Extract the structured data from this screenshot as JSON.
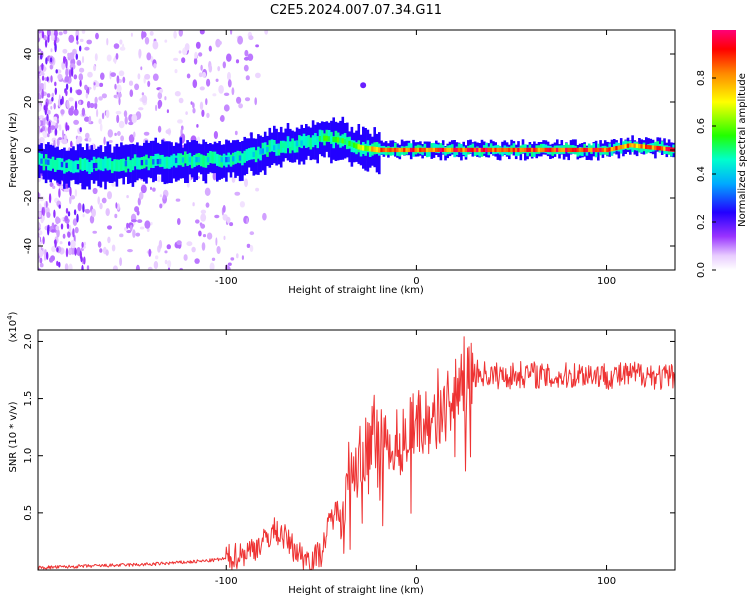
{
  "title": "C2E5.2024.007.07.34.G11",
  "chart_data": [
    {
      "type": "heatmap",
      "xlabel": "Height of straight line (km)",
      "ylabel": "Frequency (Hz)",
      "xlim": [
        -199,
        136
      ],
      "ylim": [
        -50,
        50
      ],
      "xticks": [
        -100,
        0,
        100
      ],
      "yticks": [
        -40,
        -20,
        0,
        20,
        40
      ],
      "colorbar": {
        "label": "Normalized spectral amplitude",
        "range": [
          0,
          1
        ],
        "ticks": [
          "0.0",
          "0.2",
          "0.4",
          "0.6",
          "0.8"
        ]
      },
      "ridge": [
        {
          "x": -195,
          "freq": -5,
          "amp": 0.35
        },
        {
          "x": -180,
          "freq": -7,
          "amp": 0.3
        },
        {
          "x": -160,
          "freq": -6,
          "amp": 0.3
        },
        {
          "x": -140,
          "freq": -5,
          "amp": 0.35
        },
        {
          "x": -120,
          "freq": -4,
          "amp": 0.4
        },
        {
          "x": -100,
          "freq": -4,
          "amp": 0.4
        },
        {
          "x": -90,
          "freq": -3,
          "amp": 0.45
        },
        {
          "x": -80,
          "freq": 0,
          "amp": 0.45
        },
        {
          "x": -70,
          "freq": 2,
          "amp": 0.5
        },
        {
          "x": -60,
          "freq": 3,
          "amp": 0.5
        },
        {
          "x": -50,
          "freq": 5,
          "amp": 0.6
        },
        {
          "x": -40,
          "freq": 4,
          "amp": 0.6
        },
        {
          "x": -30,
          "freq": 1,
          "amp": 0.7
        },
        {
          "x": -20,
          "freq": 0,
          "amp": 0.9
        },
        {
          "x": 0,
          "freq": 0,
          "amp": 1.0
        },
        {
          "x": 50,
          "freq": 0,
          "amp": 1.0
        },
        {
          "x": 100,
          "freq": 0,
          "amp": 1.0
        },
        {
          "x": 112,
          "freq": 2,
          "amp": 0.9
        },
        {
          "x": 136,
          "freq": 0,
          "amp": 1.0
        }
      ]
    },
    {
      "type": "line",
      "xlabel": "Height of straight line (km)",
      "ylabel": "SNR (10 * v/v)",
      "y_multiplier_label": "(x10",
      "y_multiplier_exp": "4",
      "y_multiplier_close": ")",
      "xlim": [
        -199,
        136
      ],
      "ylim": [
        0,
        2.1
      ],
      "xticks": [
        -100,
        0,
        100
      ],
      "yticks": [
        "0.5",
        "1.0",
        "1.5",
        "2.0"
      ],
      "color": "#ee3333",
      "series": [
        {
          "x": [
            -199,
            -180,
            -160,
            -140,
            -120,
            -110,
            -100,
            -90,
            -80,
            -75,
            -70,
            -65,
            -60,
            -55,
            -50,
            -45,
            -40,
            -35,
            -30,
            -25,
            -20,
            -15,
            -10,
            -5,
            0,
            5,
            10,
            15,
            20,
            25,
            30,
            35,
            40,
            50,
            60,
            70,
            80,
            90,
            100,
            110,
            120,
            130,
            136
          ],
          "y": [
            0.02,
            0.03,
            0.04,
            0.05,
            0.07,
            0.08,
            0.1,
            0.15,
            0.25,
            0.35,
            0.3,
            0.2,
            0.12,
            0.1,
            0.15,
            0.45,
            0.55,
            0.75,
            0.95,
            1.1,
            1.2,
            1.15,
            1.1,
            1.2,
            1.3,
            1.3,
            1.35,
            1.45,
            1.55,
            1.65,
            1.72,
            1.72,
            1.7,
            1.7,
            1.72,
            1.68,
            1.7,
            1.72,
            1.7,
            1.7,
            1.72,
            1.68,
            1.7
          ]
        }
      ]
    }
  ]
}
